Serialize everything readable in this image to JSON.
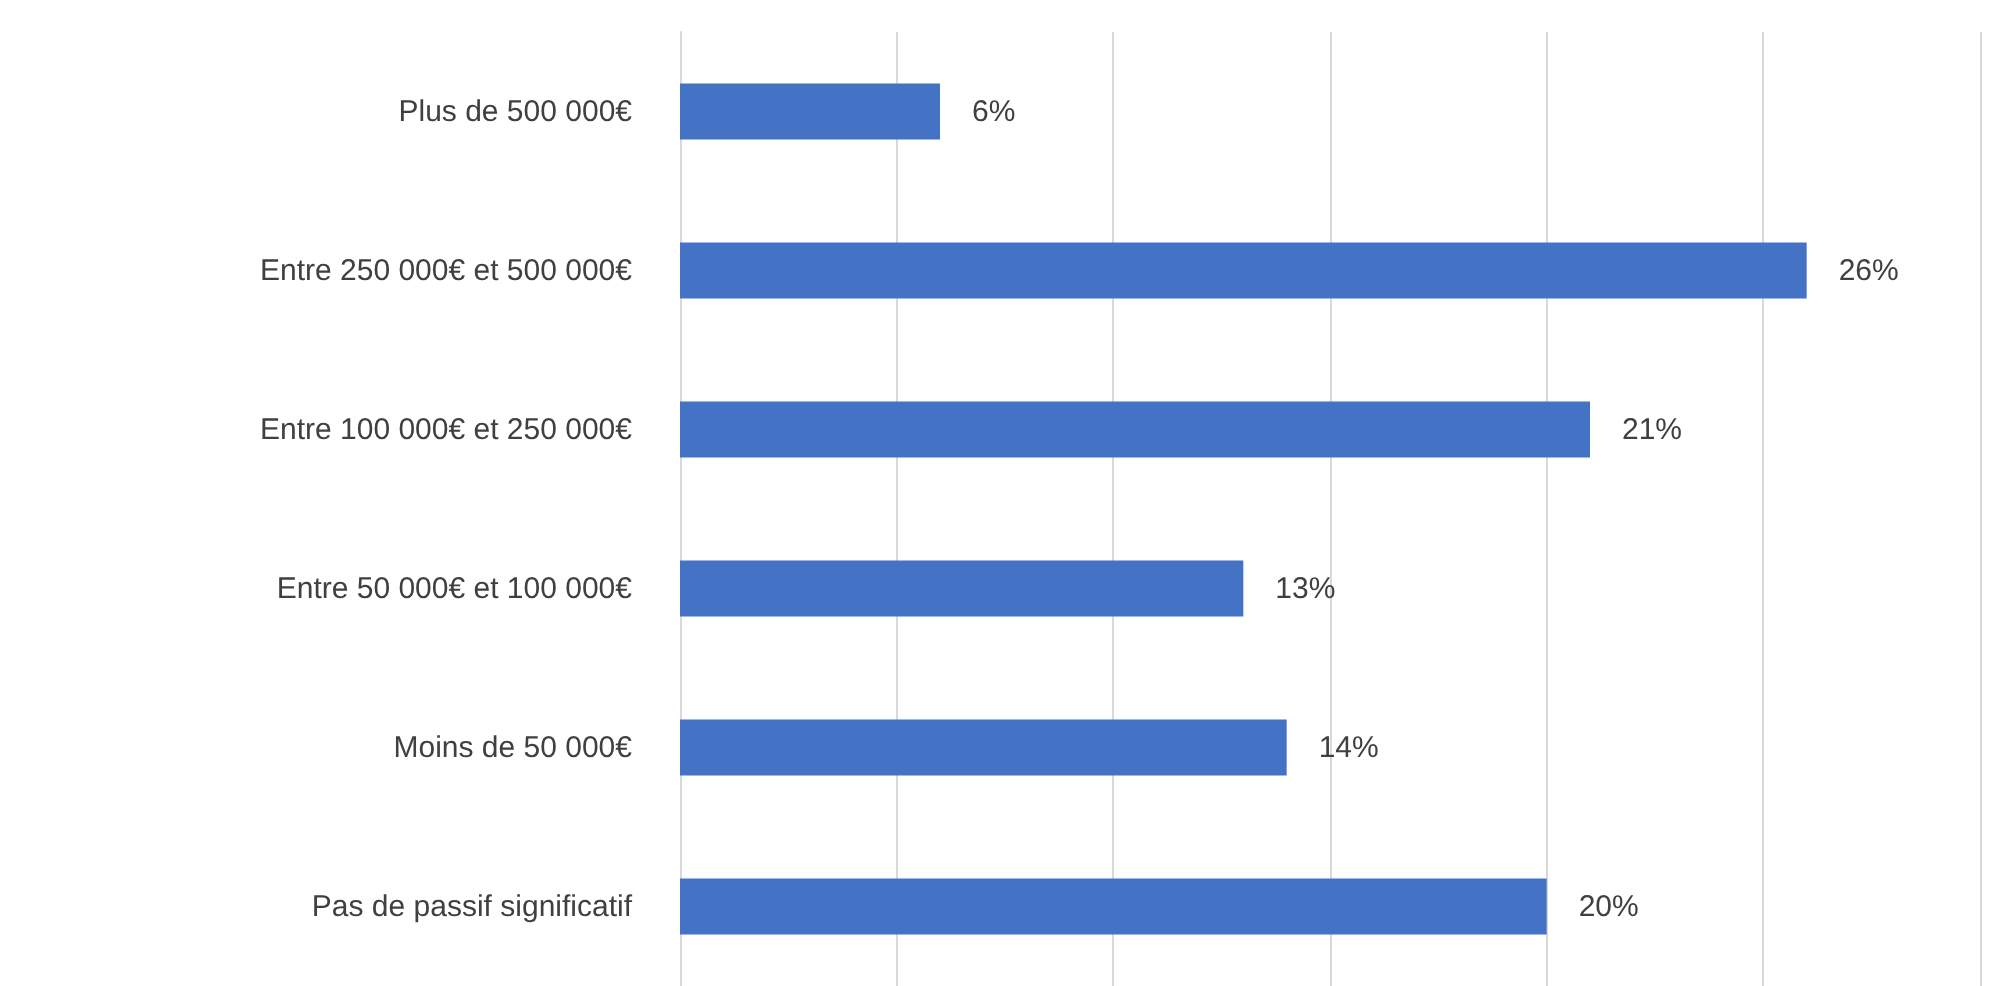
{
  "chart_data": {
    "type": "bar",
    "orientation": "horizontal",
    "categories": [
      "Plus de 500 000€",
      "Entre 250 000€ et 500 000€",
      "Entre 100 000€ et 250 000€",
      "Entre 50 000€ et 100 000€",
      "Moins de 50 000€",
      "Pas de passif significatif"
    ],
    "values": [
      6,
      26,
      21,
      13,
      14,
      20
    ],
    "color": "#4472c4",
    "value_labels": [
      "6%",
      "26%",
      "21%",
      "13%",
      "14%",
      "20%"
    ],
    "xlim": [
      0,
      30
    ],
    "xticks": [
      {
        "value": 0,
        "label": null
      },
      {
        "value": 5,
        "label": null
      },
      {
        "value": 10,
        "label": null
      },
      {
        "value": 15,
        "label": null
      },
      {
        "value": 20,
        "label": null
      },
      {
        "value": 25,
        "label": null
      },
      {
        "value": 30,
        "label": null
      }
    ],
    "grid": "x",
    "tick_labels": "y"
  }
}
